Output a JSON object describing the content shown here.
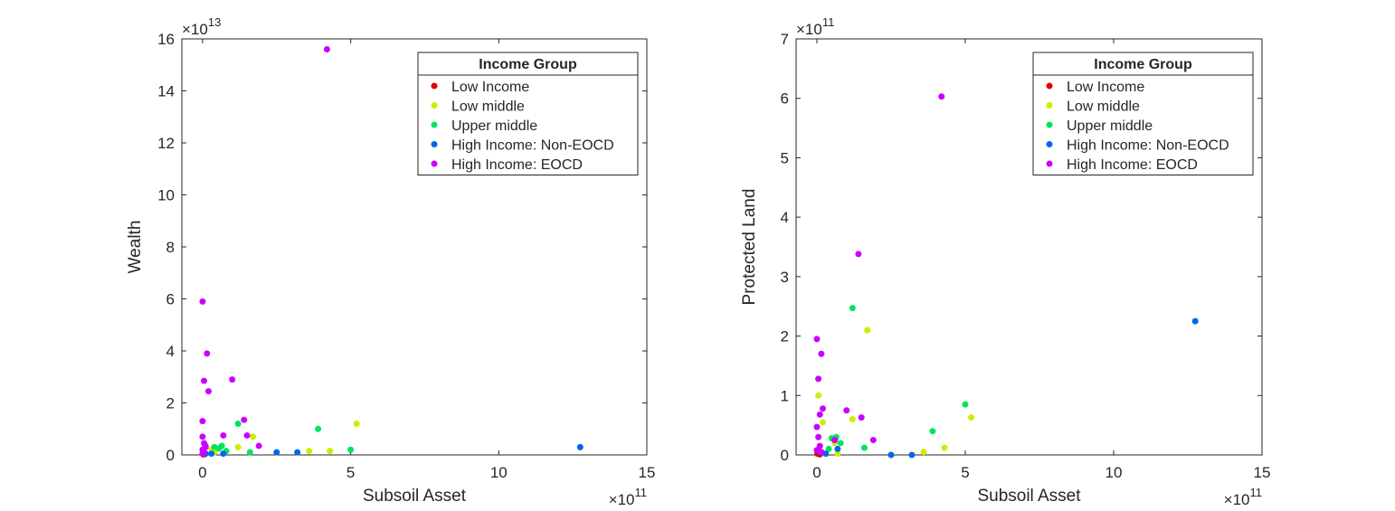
{
  "chart_data": [
    {
      "type": "scatter",
      "xlabel": "Subsoil Asset",
      "ylabel": "Wealth",
      "x_exponent": "×10",
      "x_exponent_power": "11",
      "y_exponent": "×10",
      "y_exponent_power": "13",
      "xlim": [
        -0.7,
        15
      ],
      "ylim": [
        0,
        16
      ],
      "xticks": [
        0,
        5,
        10,
        15
      ],
      "yticks": [
        0,
        2,
        4,
        6,
        8,
        10,
        12,
        14,
        16
      ],
      "grid": false,
      "legend": {
        "title": "Income Group",
        "placement": "top-right",
        "entries": [
          "Low Income",
          "Low middle",
          "Upper middle",
          "High Income: Non-EOCD",
          "High Income: EOCD"
        ]
      },
      "series": [
        {
          "name": "Low Income",
          "color": "#e60000",
          "points": [
            [
              0.02,
              0.02
            ],
            [
              0.05,
              0.04
            ],
            [
              0.08,
              0.03
            ]
          ]
        },
        {
          "name": "Low middle",
          "color": "#ccee00",
          "points": [
            [
              0.05,
              0.1
            ],
            [
              0.3,
              0.2
            ],
            [
              0.4,
              0.1
            ],
            [
              1.2,
              0.3
            ],
            [
              1.7,
              0.7
            ],
            [
              3.6,
              0.15
            ],
            [
              4.3,
              0.15
            ],
            [
              5.2,
              1.2
            ],
            [
              0.6,
              0.3
            ]
          ]
        },
        {
          "name": "Upper middle",
          "color": "#00e65c",
          "points": [
            [
              0.4,
              0.3
            ],
            [
              0.55,
              0.25
            ],
            [
              0.65,
              0.35
            ],
            [
              0.8,
              0.15
            ],
            [
              1.2,
              1.2
            ],
            [
              1.6,
              0.1
            ],
            [
              3.9,
              1.0
            ],
            [
              5.0,
              0.2
            ]
          ]
        },
        {
          "name": "High Income: Non-EOCD",
          "color": "#0066ee",
          "points": [
            [
              0.1,
              0.05
            ],
            [
              0.3,
              0.05
            ],
            [
              0.7,
              0.05
            ],
            [
              2.5,
              0.1
            ],
            [
              3.2,
              0.1
            ],
            [
              12.75,
              0.3
            ]
          ]
        },
        {
          "name": "High Income: EOCD",
          "color": "#cc00ff",
          "points": [
            [
              0.0,
              5.9
            ],
            [
              0.15,
              3.9
            ],
            [
              0.05,
              2.85
            ],
            [
              0.2,
              2.45
            ],
            [
              1.0,
              2.9
            ],
            [
              0.0,
              1.3
            ],
            [
              1.4,
              1.35
            ],
            [
              0.7,
              0.75
            ],
            [
              1.5,
              0.75
            ],
            [
              1.9,
              0.35
            ],
            [
              0.0,
              0.7
            ],
            [
              0.05,
              0.45
            ],
            [
              0.1,
              0.3
            ],
            [
              0.0,
              0.2
            ],
            [
              0.05,
              0.1
            ],
            [
              0.1,
              0.35
            ],
            [
              0.0,
              0.05
            ],
            [
              4.2,
              15.6
            ]
          ]
        }
      ]
    },
    {
      "type": "scatter",
      "xlabel": "Subsoil Asset",
      "ylabel": "Protected Land",
      "x_exponent": "×10",
      "x_exponent_power": "11",
      "y_exponent": "×10",
      "y_exponent_power": "11",
      "xlim": [
        -0.7,
        15
      ],
      "ylim": [
        0,
        7
      ],
      "xticks": [
        0,
        5,
        10,
        15
      ],
      "yticks": [
        0,
        1,
        2,
        3,
        4,
        5,
        6,
        7
      ],
      "grid": false,
      "legend": {
        "title": "Income Group",
        "placement": "top-right",
        "entries": [
          "Low Income",
          "Low middle",
          "Upper middle",
          "High Income: Non-EOCD",
          "High Income: EOCD"
        ]
      },
      "series": [
        {
          "name": "Low Income",
          "color": "#e60000",
          "points": [
            [
              0.02,
              0.02
            ],
            [
              0.05,
              0.03
            ],
            [
              0.1,
              0.01
            ]
          ]
        },
        {
          "name": "Low middle",
          "color": "#ccee00",
          "points": [
            [
              0.05,
              1.0
            ],
            [
              0.2,
              0.55
            ],
            [
              1.2,
              0.6
            ],
            [
              1.7,
              2.1
            ],
            [
              3.6,
              0.05
            ],
            [
              4.3,
              0.12
            ],
            [
              5.2,
              0.63
            ],
            [
              0.6,
              0.2
            ],
            [
              0.7,
              0.02
            ]
          ]
        },
        {
          "name": "Upper middle",
          "color": "#00e65c",
          "points": [
            [
              0.5,
              0.28
            ],
            [
              0.65,
              0.3
            ],
            [
              0.8,
              0.2
            ],
            [
              1.2,
              2.47
            ],
            [
              1.6,
              0.12
            ],
            [
              3.9,
              0.4
            ],
            [
              5.0,
              0.85
            ],
            [
              0.4,
              0.1
            ]
          ]
        },
        {
          "name": "High Income: Non-EOCD",
          "color": "#0066ee",
          "points": [
            [
              0.1,
              0.05
            ],
            [
              0.3,
              0.02
            ],
            [
              0.7,
              0.1
            ],
            [
              2.5,
              0.0
            ],
            [
              3.2,
              0.0
            ],
            [
              12.75,
              2.25
            ]
          ]
        },
        {
          "name": "High Income: EOCD",
          "color": "#cc00ff",
          "points": [
            [
              0.0,
              1.95
            ],
            [
              0.15,
              1.7
            ],
            [
              0.05,
              1.28
            ],
            [
              0.2,
              0.78
            ],
            [
              0.1,
              0.68
            ],
            [
              1.0,
              0.75
            ],
            [
              1.4,
              3.38
            ],
            [
              1.5,
              0.63
            ],
            [
              1.9,
              0.25
            ],
            [
              0.0,
              0.47
            ],
            [
              0.05,
              0.3
            ],
            [
              0.1,
              0.15
            ],
            [
              0.0,
              0.08
            ],
            [
              0.15,
              0.05
            ],
            [
              0.6,
              0.25
            ],
            [
              4.2,
              6.03
            ]
          ]
        }
      ]
    }
  ]
}
